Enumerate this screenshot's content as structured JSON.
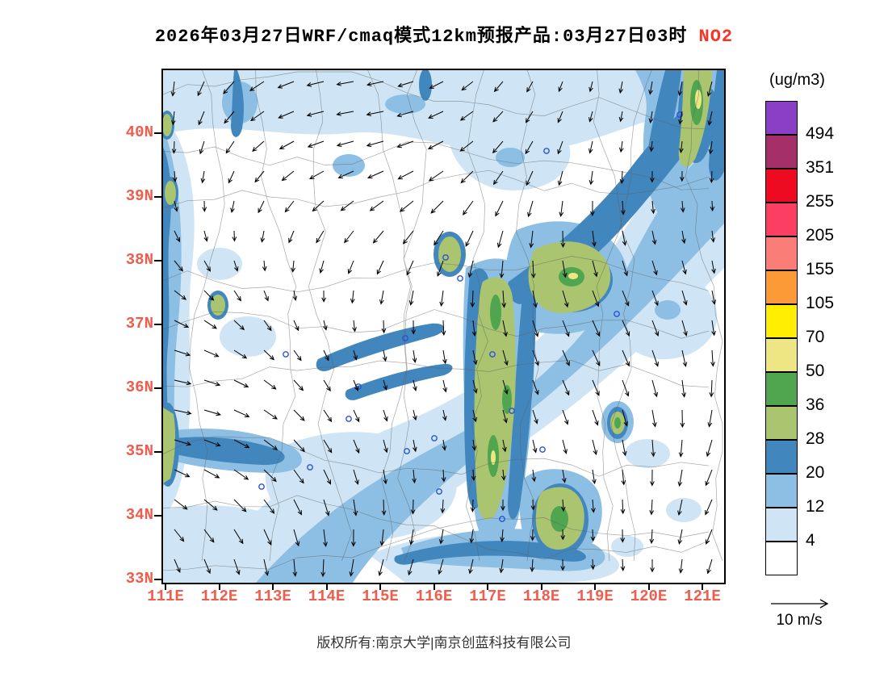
{
  "title": {
    "text": "2026年03月27日WRF/cmaq模式12km预报产品:03月27日03时",
    "species": "NO2",
    "species_color": "#f73425"
  },
  "axes": {
    "y_ticks": [
      "40N",
      "39N",
      "38N",
      "37N",
      "36N",
      "35N",
      "34N",
      "33N"
    ],
    "x_ticks": [
      "111E",
      "112E",
      "113E",
      "114E",
      "115E",
      "116E",
      "117E",
      "118E",
      "119E",
      "120E",
      "121E"
    ],
    "label_color": "#ee5d4d"
  },
  "colorbar": {
    "unit": "(ug/m3)",
    "levels": [
      494,
      351,
      255,
      205,
      155,
      105,
      70,
      50,
      36,
      28,
      20,
      12,
      4
    ],
    "colors": [
      "#8b3fc6",
      "#a53069",
      "#ee0a21",
      "#fb3e62",
      "#fb7d78",
      "#fd9a38",
      "#ffee00",
      "#eee685",
      "#4fa64f",
      "#abc46f",
      "#4186bd",
      "#8cbfe3",
      "#cfe5f5",
      "#ffffff"
    ]
  },
  "wind_legend": {
    "label": "10 m/s"
  },
  "footer": {
    "text": "版权所有:南京大学|南京创蓝科技有限公司"
  }
}
